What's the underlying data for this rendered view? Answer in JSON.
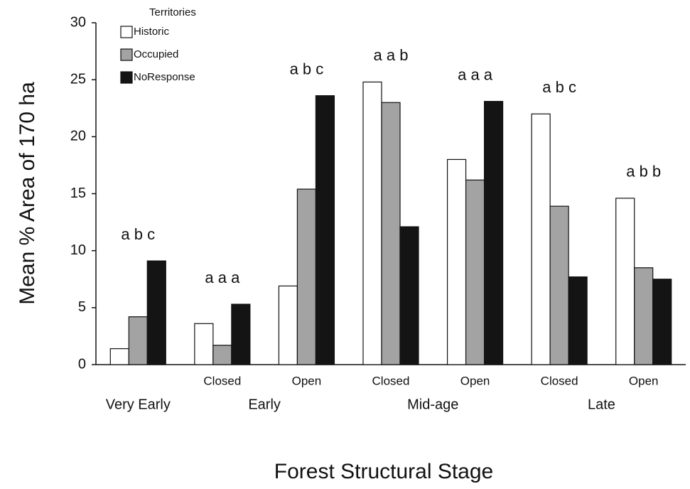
{
  "chart_data": {
    "type": "bar",
    "xlabel": "Forest Structural Stage",
    "ylabel": "Mean % Area of 170 ha",
    "categories": [
      null,
      "Closed",
      "Open",
      "Closed",
      "Open",
      "Closed",
      "Open"
    ],
    "category_groups": [
      {
        "label": "Very Early",
        "size": 1
      },
      {
        "label": "Early",
        "size": 2
      },
      {
        "label": "Mid-age",
        "size": 2
      },
      {
        "label": "Late",
        "size": 2
      }
    ],
    "annotations": [
      "a b c",
      "a a a",
      "a b c",
      "a a b",
      "a a a",
      "a b c",
      "a b b"
    ],
    "legend_title": "Territories",
    "legend": "upper left",
    "series": [
      {
        "name": "Historic",
        "color": "#ffffff",
        "values": [
          1.4,
          3.6,
          6.9,
          24.8,
          18.0,
          22.0,
          14.6
        ]
      },
      {
        "name": "Occupied",
        "color": "#a3a3a3",
        "values": [
          4.2,
          1.7,
          15.4,
          23.0,
          16.2,
          13.9,
          8.5
        ]
      },
      {
        "name": "NoResponse",
        "color": "#141414",
        "values": [
          9.1,
          5.3,
          23.6,
          12.1,
          23.1,
          7.7,
          7.5
        ]
      }
    ],
    "ylim": [
      0,
      30
    ],
    "yticks": [
      0,
      5,
      10,
      15,
      20,
      25,
      30
    ],
    "grid": false
  }
}
